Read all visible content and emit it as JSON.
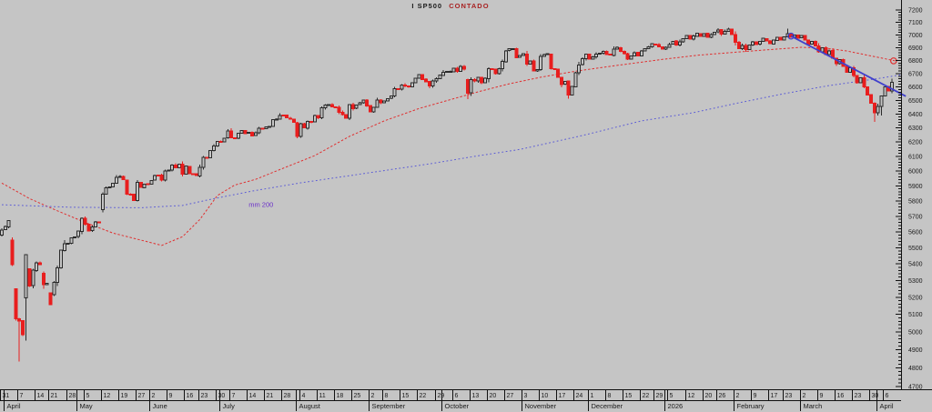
{
  "title": {
    "instrument": "I SP500",
    "series_type": "CONTADO"
  },
  "colors": {
    "background": "#c5c5c5",
    "up_candle_border": "#2b2b2b",
    "down_candle": "#e81e1e",
    "ma_fast": "#e03030",
    "ma_200": "#5b5bd6",
    "ma_200_label": "#6a2fc9",
    "trendline": "#4040cc",
    "axis_text": "#1a1a1a",
    "title_main": "#1a1a1a",
    "title_accent": "#a82222"
  },
  "y_axis": {
    "side": "right",
    "scale": "log",
    "min": 4700,
    "max": 7200,
    "major_step": 100,
    "minor_step": 20,
    "labels": [
      "7200",
      "7100",
      "7000",
      "6900",
      "6800",
      "6700",
      "6600",
      "6500",
      "6400",
      "6300",
      "6200",
      "6100",
      "6000",
      "5900",
      "5800",
      "5700",
      "5600",
      "5500",
      "5400",
      "5300",
      "5200",
      "5100",
      "5000",
      "4900",
      "4800",
      "4700"
    ]
  },
  "x_axis": {
    "months": [
      {
        "day": 1,
        "label": "April"
      },
      {
        "day": 22,
        "label": "May"
      },
      {
        "day": 43,
        "label": "June"
      },
      {
        "day": 63,
        "label": "July"
      },
      {
        "day": 85,
        "label": "August"
      },
      {
        "day": 106,
        "label": "September"
      },
      {
        "day": 127,
        "label": "October"
      },
      {
        "day": 150,
        "label": "November"
      },
      {
        "day": 169,
        "label": "December"
      },
      {
        "day": 191,
        "label": "2026"
      },
      {
        "day": 211,
        "label": "February"
      },
      {
        "day": 230,
        "label": "March"
      },
      {
        "day": 252,
        "label": "April"
      }
    ],
    "weeks": [
      [
        0,
        "31"
      ],
      [
        5,
        "7"
      ],
      [
        10,
        "14"
      ],
      [
        14,
        "21"
      ],
      [
        19,
        "28"
      ],
      [
        24,
        "5"
      ],
      [
        29,
        "12"
      ],
      [
        34,
        "19"
      ],
      [
        39,
        "27"
      ],
      [
        43,
        "2"
      ],
      [
        48,
        "9"
      ],
      [
        53,
        "16"
      ],
      [
        57,
        "23"
      ],
      [
        62,
        "30"
      ],
      [
        66,
        "7"
      ],
      [
        71,
        "14"
      ],
      [
        76,
        "21"
      ],
      [
        81,
        "28"
      ],
      [
        86,
        "4"
      ],
      [
        91,
        "11"
      ],
      [
        96,
        "18"
      ],
      [
        101,
        "25"
      ],
      [
        106,
        "2"
      ],
      [
        110,
        "8"
      ],
      [
        115,
        "15"
      ],
      [
        120,
        "22"
      ],
      [
        125,
        "29"
      ],
      [
        130,
        "6"
      ],
      [
        135,
        "13"
      ],
      [
        140,
        "20"
      ],
      [
        145,
        "27"
      ],
      [
        150,
        "3"
      ],
      [
        155,
        "10"
      ],
      [
        160,
        "17"
      ],
      [
        165,
        "24"
      ],
      [
        169,
        "1"
      ],
      [
        174,
        "8"
      ],
      [
        179,
        "15"
      ],
      [
        184,
        "22"
      ],
      [
        188,
        "29"
      ],
      [
        192,
        "5"
      ],
      [
        197,
        "12"
      ],
      [
        202,
        "20"
      ],
      [
        206,
        "26"
      ],
      [
        211,
        "2"
      ],
      [
        216,
        "9"
      ],
      [
        221,
        "17"
      ],
      [
        225,
        "23"
      ],
      [
        230,
        "2"
      ],
      [
        235,
        "9"
      ],
      [
        240,
        "16"
      ],
      [
        245,
        "23"
      ],
      [
        250,
        "30"
      ],
      [
        254,
        "6"
      ]
    ]
  },
  "chart_data": {
    "type": "candlestick",
    "symbol": "I SP500 CONTADO",
    "period": "daily",
    "first_open": 5580,
    "closes": [
      5612,
      5633,
      5671,
      5396,
      5074,
      5062,
      4983,
      5457,
      5268,
      5363,
      5406,
      5397,
      5276,
      5283,
      5158,
      5288,
      5376,
      5485,
      5525,
      5529,
      5561,
      5569,
      5604,
      5687,
      5650,
      5607,
      5631,
      5664,
      5660,
      5844,
      5887,
      5893,
      5916,
      5958,
      5964,
      5940,
      5845,
      5842,
      5803,
      5922,
      5889,
      5912,
      5912,
      5936,
      5970,
      5971,
      5939,
      6000,
      6006,
      6039,
      6022,
      6045,
      5977,
      6033,
      5983,
      5981,
      5968,
      6025,
      6092,
      6092,
      6141,
      6173,
      6205,
      6198,
      6227,
      6279,
      6230,
      6226,
      6263,
      6280,
      6260,
      6269,
      6244,
      6264,
      6297,
      6297,
      6306,
      6310,
      6359,
      6363,
      6389,
      6390,
      6371,
      6363,
      6339,
      6238,
      6330,
      6299,
      6345,
      6340,
      6389,
      6373,
      6446,
      6466,
      6469,
      6450,
      6449,
      6411,
      6395,
      6370,
      6467,
      6439,
      6466,
      6481,
      6501,
      6460,
      6415,
      6448,
      6502,
      6481,
      6495,
      6513,
      6532,
      6587,
      6584,
      6615,
      6606,
      6600,
      6632,
      6664,
      6693,
      6656,
      6638,
      6605,
      6644,
      6661,
      6688,
      6711,
      6715,
      6716,
      6740,
      6715,
      6754,
      6735,
      6553,
      6654,
      6644,
      6671,
      6629,
      6664,
      6736,
      6735,
      6699,
      6738,
      6792,
      6875,
      6890,
      6891,
      6822,
      6840,
      6852,
      6771,
      6796,
      6720,
      6729,
      6833,
      6847,
      6851,
      6737,
      6734,
      6672,
      6617,
      6642,
      6539,
      6603,
      6705,
      6766,
      6813,
      6849,
      6812,
      6829,
      6850,
      6857,
      6870,
      6847,
      6841,
      6887,
      6901,
      6871,
      6852,
      6810,
      6835,
      6860,
      6835,
      6875,
      6890,
      6905,
      6930,
      6925,
      6906,
      6888,
      6903,
      6925,
      6950,
      6920,
      6945,
      6970,
      6995,
      6965,
      6990,
      7012,
      6988,
      7010,
      6982,
      7002,
      7022,
      7040,
      7008,
      7028,
      7045,
      7002,
      6940,
      6890,
      6915,
      6885,
      6920,
      6945,
      6925,
      6950,
      6972,
      6952,
      6930,
      6958,
      6980,
      6960,
      6985,
      7008,
      6980,
      7000,
      6975,
      6995,
      6960,
      6925,
      6950,
      6912,
      6868,
      6900,
      6845,
      6875,
      6818,
      6775,
      6808,
      6755,
      6710,
      6745,
      6685,
      6632,
      6668,
      6600,
      6540,
      6480,
      6408,
      6455,
      6532,
      6600,
      6568,
      6635
    ],
    "wick_overrides": {
      "5": {
        "low": 4835
      },
      "7": {
        "low": 4950
      },
      "134": {
        "low": 6510
      },
      "163": {
        "low": 6512
      },
      "209": {
        "high": 7058
      },
      "226": {
        "high": 7048
      },
      "251": {
        "low": 6342
      },
      "253": {
        "low": 6390
      },
      "256": {
        "high": 6662
      }
    },
    "moving_averages": [
      {
        "name": "ma-fast-red-dotted",
        "points": [
          [
            0,
            5918
          ],
          [
            8,
            5815
          ],
          [
            16,
            5735
          ],
          [
            24,
            5660
          ],
          [
            32,
            5592
          ],
          [
            40,
            5548
          ],
          [
            46,
            5515
          ],
          [
            52,
            5570
          ],
          [
            57,
            5680
          ],
          [
            62,
            5835
          ],
          [
            67,
            5905
          ],
          [
            73,
            5943
          ],
          [
            80,
            6010
          ],
          [
            90,
            6105
          ],
          [
            100,
            6240
          ],
          [
            110,
            6350
          ],
          [
            120,
            6440
          ],
          [
            130,
            6512
          ],
          [
            138,
            6570
          ],
          [
            146,
            6623
          ],
          [
            155,
            6672
          ],
          [
            165,
            6718
          ],
          [
            177,
            6762
          ],
          [
            190,
            6808
          ],
          [
            200,
            6840
          ],
          [
            210,
            6862
          ],
          [
            220,
            6882
          ],
          [
            230,
            6902
          ],
          [
            237,
            6895
          ],
          [
            243,
            6874
          ],
          [
            250,
            6835
          ],
          [
            257,
            6797
          ]
        ]
      },
      {
        "name": "ma-200-blue-dotted",
        "label": "mm 200",
        "label_at": {
          "day": 71,
          "value": 5808
        },
        "points": [
          [
            0,
            5775
          ],
          [
            20,
            5758
          ],
          [
            40,
            5755
          ],
          [
            52,
            5770
          ],
          [
            60,
            5810
          ],
          [
            72,
            5865
          ],
          [
            86,
            5920
          ],
          [
            104,
            5982
          ],
          [
            123,
            6048
          ],
          [
            136,
            6100
          ],
          [
            149,
            6148
          ],
          [
            167,
            6246
          ],
          [
            184,
            6350
          ],
          [
            199,
            6410
          ],
          [
            212,
            6482
          ],
          [
            225,
            6549
          ],
          [
            238,
            6610
          ],
          [
            251,
            6658
          ],
          [
            259,
            6692
          ]
        ]
      }
    ],
    "trendline": {
      "from": {
        "day": 227,
        "value": 6990
      },
      "to": {
        "day": 260,
        "value": 6530
      }
    },
    "markers": [
      {
        "type": "circle",
        "day": 227,
        "value": 6990,
        "color": "#4040cc"
      },
      {
        "type": "circle",
        "day": 256.5,
        "value": 6797,
        "color": "#e03030"
      }
    ]
  }
}
